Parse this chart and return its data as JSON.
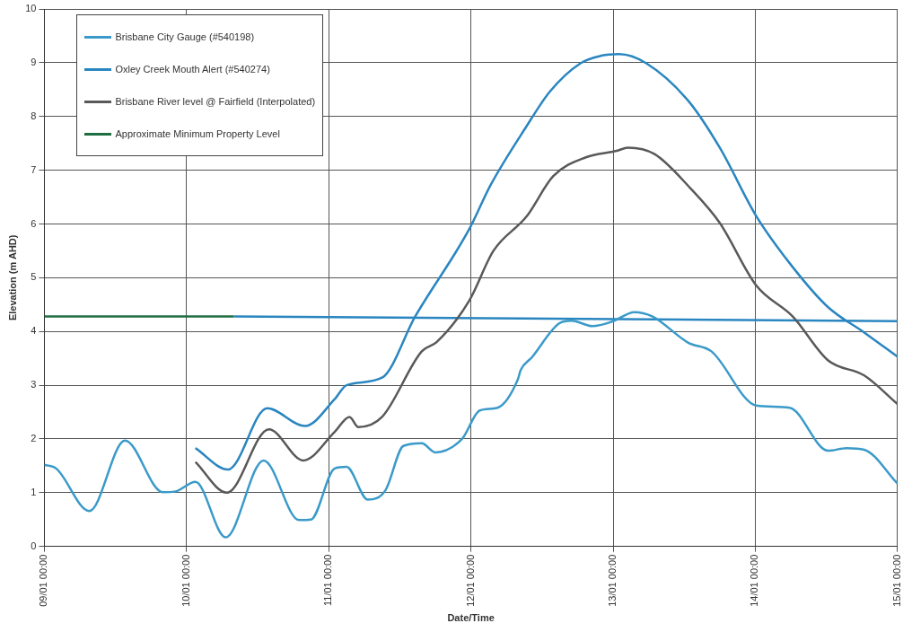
{
  "chart_data": {
    "type": "line",
    "xlabel": "Date/Time",
    "ylabel": "Elevation (m AHD)",
    "xlim": [
      "--01-09T00:00",
      "--01-15T00:00"
    ],
    "xticks": [
      {
        "value": "--01-09T00:00",
        "label": "09/01 00:00"
      },
      {
        "value": "--01-10T00:00",
        "label": "10/01 00:00"
      },
      {
        "value": "--01-11T00:00",
        "label": "11/01 00:00"
      },
      {
        "value": "--01-12T00:00",
        "label": "12/01 00:00"
      },
      {
        "value": "--01-13T00:00",
        "label": "13/01 00:00"
      },
      {
        "value": "--01-14T00:00",
        "label": "14/01 00:00"
      },
      {
        "value": "--01-15T00:00",
        "label": "15/01 00:00"
      }
    ],
    "ylim": [
      0,
      10
    ],
    "yticks": [
      0,
      1,
      2,
      3,
      4,
      5,
      6,
      7,
      8,
      9,
      10
    ],
    "grid": true,
    "legend": "top left",
    "marker": "none",
    "line_style": "solid",
    "series": [
      {
        "name": "Brisbane City Gauge (#540198)",
        "color": "#3a9ac9",
        "x": [
          "--01-09T00:00",
          "--01-09T02:00",
          "--01-09T07:36",
          "--01-09T13:36",
          "--01-09T20:00",
          "--01-09T22:00",
          "--01-10T01:30",
          "--01-10T06:36",
          "--01-10T13:00",
          "--01-10T19:00",
          "--01-10T21:00",
          "--01-11T01:00",
          "--01-11T03:00",
          "--01-11T06:36",
          "--01-11T09:36",
          "--01-11T12:36",
          "--01-11T15:42",
          "--01-11T18:00",
          "--01-11T22:30",
          "--01-12T01:30",
          "--01-12T04:30",
          "--01-12T07:54",
          "--01-12T08:24",
          "--01-12T10:18",
          "--01-12T14:54",
          "--01-12T17:00",
          "--01-12T20:30",
          "--01-13T00:00",
          "--01-13T03:36",
          "--01-13T06:36",
          "--01-13T12:42",
          "--01-13T16:36",
          "--01-14T00:12",
          "--01-14T05:48",
          "--01-14T12:18",
          "--01-14T15:24",
          "--01-14T18:24",
          "--01-15T00:00"
        ],
        "values": [
          1.52,
          1.45,
          0.66,
          1.97,
          1.01,
          1.02,
          1.2,
          0.17,
          1.6,
          0.49,
          0.5,
          1.45,
          1.48,
          0.87,
          1.05,
          1.87,
          1.92,
          1.75,
          2.0,
          2.53,
          2.58,
          3.1,
          3.28,
          3.52,
          4.15,
          4.2,
          4.1,
          4.19,
          4.36,
          4.28,
          3.79,
          3.63,
          2.62,
          2.58,
          1.78,
          1.83,
          1.8,
          1.17
        ]
      },
      {
        "name": "Oxley Creek Mouth Alert (#540274)",
        "color": "#2a86c0",
        "x": [
          "--01-10T01:30",
          "--01-10T07:00",
          "--01-10T13:36",
          "--01-10T20:00",
          "--01-11T01:00",
          "--01-11T03:00",
          "--01-11T09:00",
          "--01-11T14:36",
          "--01-11T23:42",
          "--01-12T03:18",
          "--01-12T09:24",
          "--01-12T13:18",
          "--01-12T18:30",
          "--01-12T22:00",
          "--01-13T01:00",
          "--01-13T05:36",
          "--01-13T12:42",
          "--01-13T18:00",
          "--01-14T00:12",
          "--01-14T06:18",
          "--01-14T12:18",
          "--01-14T18:24",
          "--01-15T00:00"
        ],
        "values": [
          1.83,
          1.43,
          2.57,
          2.24,
          2.74,
          3.0,
          3.14,
          4.28,
          5.9,
          6.72,
          7.82,
          8.46,
          8.99,
          9.13,
          9.16,
          8.99,
          8.29,
          7.42,
          6.14,
          5.2,
          4.45,
          3.98,
          3.53
        ]
      },
      {
        "name": "Brisbane River level @ Fairfield (Interpolated)",
        "color": "#595959",
        "x": [
          "--01-10T01:30",
          "--01-10T06:48",
          "--01-10T13:54",
          "--01-10T19:42",
          "--01-11T01:00",
          "--01-11T03:30",
          "--01-11T05:00",
          "--01-11T09:00",
          "--01-11T15:42",
          "--01-11T18:12",
          "--01-11T23:42",
          "--01-12T03:48",
          "--01-12T09:24",
          "--01-12T13:54",
          "--01-12T19:24",
          "--01-13T00:36",
          "--01-13T02:30",
          "--01-13T07:00",
          "--01-13T13:00",
          "--01-13T18:00",
          "--01-14T00:12",
          "--01-14T06:18",
          "--01-14T12:18",
          "--01-14T18:24",
          "--01-15T00:00"
        ],
        "values": [
          1.57,
          1.0,
          2.18,
          1.6,
          2.13,
          2.41,
          2.22,
          2.41,
          3.63,
          3.8,
          4.57,
          5.5,
          6.14,
          6.89,
          7.24,
          7.36,
          7.42,
          7.3,
          6.67,
          6.02,
          4.85,
          4.28,
          3.46,
          3.18,
          2.65
        ]
      },
      {
        "name": "Approximate Minimum Property Level",
        "color": "#1f6e43",
        "x": [
          "--01-09T00:00",
          "--01-10T08:00"
        ],
        "values": [
          4.28,
          4.28
        ]
      },
      {
        "color": "#2a86c0",
        "x": [
          "--01-10T08:00",
          "--01-15T00:00"
        ],
        "values": [
          4.28,
          4.19
        ]
      }
    ]
  }
}
